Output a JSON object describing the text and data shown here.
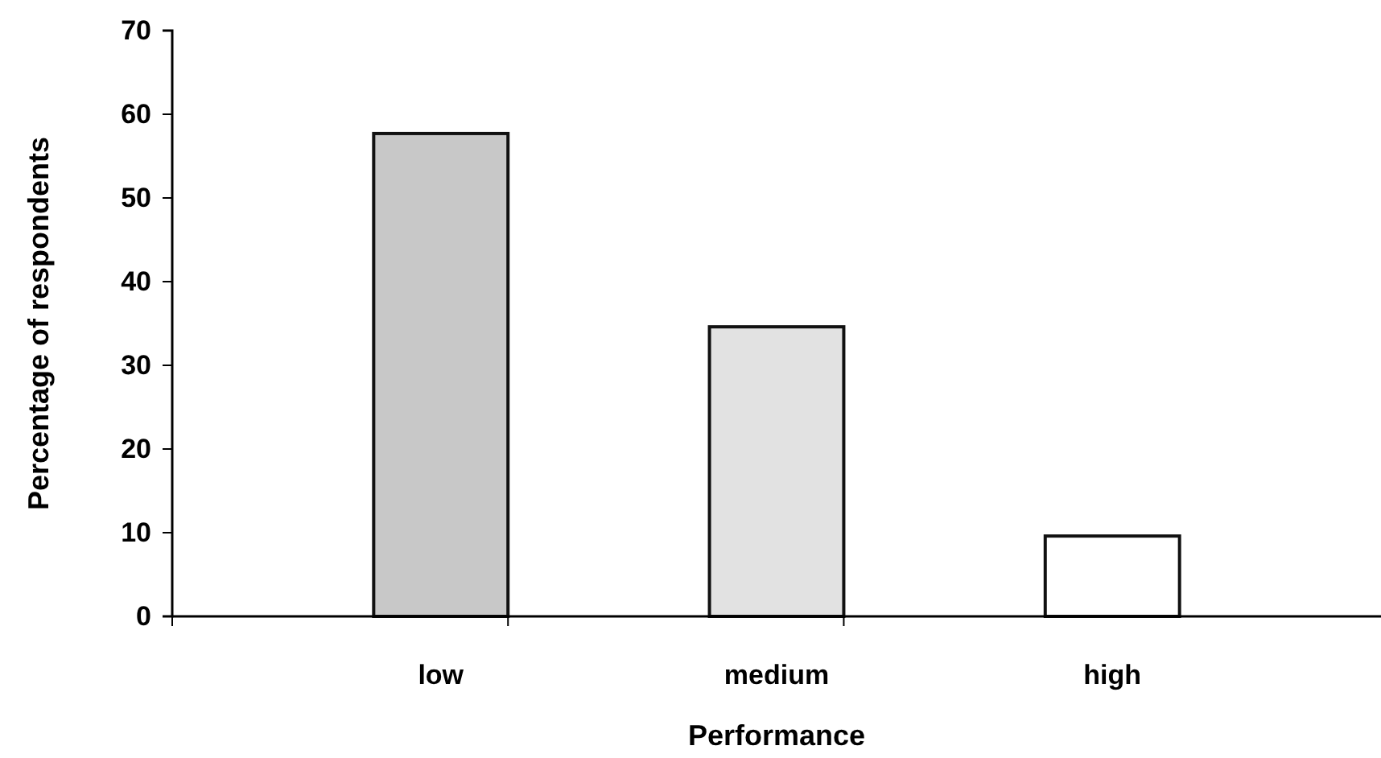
{
  "chart_data": {
    "type": "bar",
    "xlabel": "Performance",
    "ylabel": "Percentage of respondents",
    "categories": [
      "low",
      "medium",
      "high"
    ],
    "values": [
      57.7,
      34.6,
      9.6
    ],
    "colors": [
      "#c8c8c8",
      "#e2e2e2",
      "#ffffff"
    ],
    "ylim": [
      0,
      70
    ],
    "yticks": [
      0,
      10,
      20,
      30,
      40,
      50,
      60,
      70
    ],
    "grid": false
  }
}
